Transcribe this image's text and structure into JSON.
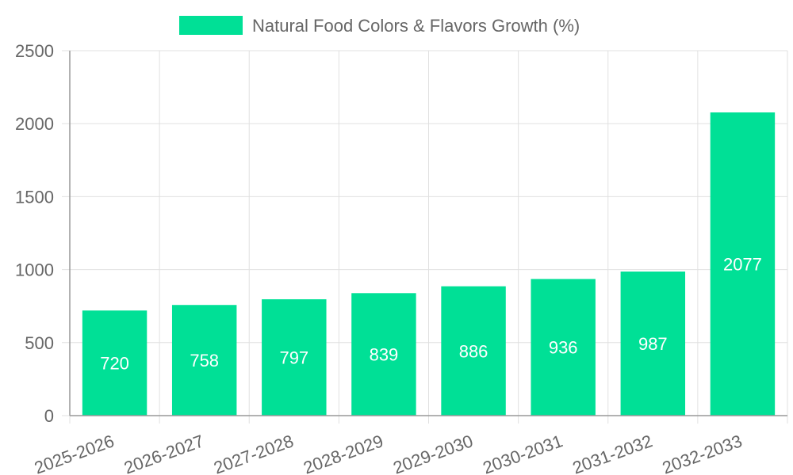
{
  "chart_data": {
    "type": "bar",
    "title": "",
    "xlabel": "",
    "ylabel": "",
    "categories": [
      "2025-2026",
      "2026-2027",
      "2027-2028",
      "2028-2029",
      "2029-2030",
      "2030-2031",
      "2031-2032",
      "2032-2033"
    ],
    "series": [
      {
        "name": "Natural Food Colors & Flavors Growth (%)",
        "values": [
          720,
          758,
          797,
          839,
          886,
          936,
          987,
          2077
        ],
        "color": "#00e096"
      }
    ],
    "ylim": [
      0,
      2500
    ],
    "yticks": [
      0,
      500,
      1000,
      1500,
      2000,
      2500
    ],
    "grid": true,
    "legend": "top-center",
    "data_labels": true
  },
  "colors": {
    "bar": "#00e096",
    "grid": "#e0e0e0",
    "axis": "#999999",
    "text": "#666666",
    "label": "#ffffff"
  }
}
